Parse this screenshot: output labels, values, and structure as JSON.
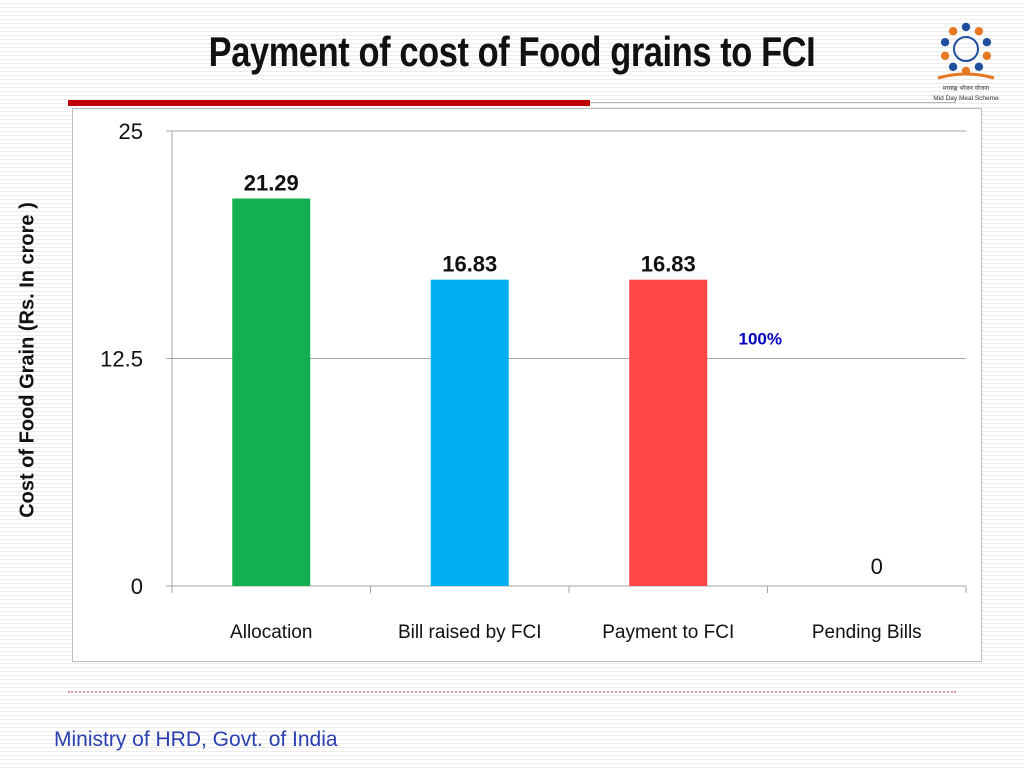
{
  "slide": {
    "title": "Payment of cost of Food grains to FCI",
    "footer": "Ministry of HRD, Govt. of India",
    "logo_text": [
      "मध्याह्न भोजन योजना",
      "Mid Day Meal Scheme"
    ]
  },
  "chart_data": {
    "type": "bar",
    "title": "",
    "xlabel": "",
    "ylabel": "Cost of Food Grain (Rs. In crore )",
    "categories": [
      "Allocation",
      "Bill raised by FCI",
      "Payment to FCI",
      "Pending Bills"
    ],
    "values": [
      21.29,
      16.83,
      16.83,
      0
    ],
    "data_labels": [
      "21.29",
      "16.83",
      "16.83",
      "0"
    ],
    "bar_colors": [
      "#14b050",
      "#00b0f0",
      "#ff4646",
      "#ff4646"
    ],
    "ylim": [
      0,
      25
    ],
    "yticks": [
      0,
      12.5,
      25
    ],
    "ytick_labels": [
      "0",
      "12.5",
      "25"
    ],
    "grid": true,
    "legend": "none",
    "annotations": [
      {
        "text": "100%",
        "color": "#0000c0"
      }
    ]
  },
  "colors": {
    "title": "#111111",
    "accent_rule": "#c00000",
    "footer": "#2a3fb0"
  }
}
